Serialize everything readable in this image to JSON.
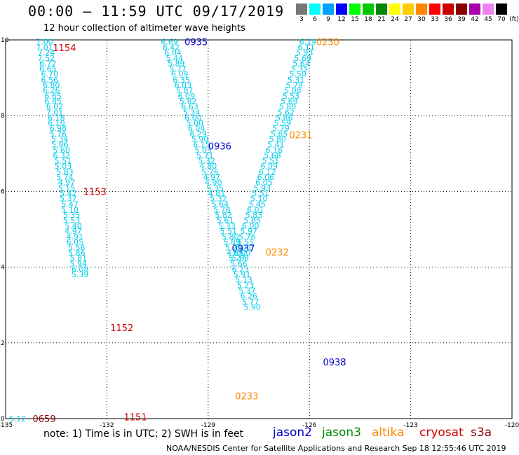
{
  "header": {
    "title": "00:00 – 11:59 UTC 09/17/2019",
    "subtitle": "12 hour collection of altimeter wave heights"
  },
  "color_scale": {
    "unit": "(ft)",
    "entries": [
      {
        "label": "3",
        "color": "#777777"
      },
      {
        "label": "6",
        "color": "#00ffff"
      },
      {
        "label": "9",
        "color": "#00a0ff"
      },
      {
        "label": "12",
        "color": "#0000ff"
      },
      {
        "label": "15",
        "color": "#00ff00"
      },
      {
        "label": "18",
        "color": "#00c800"
      },
      {
        "label": "21",
        "color": "#008800"
      },
      {
        "label": "24",
        "color": "#ffff00"
      },
      {
        "label": "27",
        "color": "#ffcc00"
      },
      {
        "label": "30",
        "color": "#ff8800"
      },
      {
        "label": "33",
        "color": "#ff0000"
      },
      {
        "label": "36",
        "color": "#cc0000"
      },
      {
        "label": "39",
        "color": "#880000"
      },
      {
        "label": "42",
        "color": "#aa00aa"
      },
      {
        "label": "45",
        "color": "#ee82ee"
      },
      {
        "label": "70",
        "color": "#000000"
      }
    ]
  },
  "footer": {
    "note": "note: 1) Time is in UTC; 2) SWH is in feet",
    "credit": "NOAA/NESDIS Center for Satellite Applications and Research   Sep 18 12:55:46 UTC 2019",
    "legend": [
      {
        "name": "jason2",
        "color": "#0000cc"
      },
      {
        "name": "jason3",
        "color": "#008800"
      },
      {
        "name": "altika",
        "color": "#ff8800"
      },
      {
        "name": "cryosat",
        "color": "#cc0000"
      },
      {
        "name": "s3a",
        "color": "#880000"
      }
    ]
  },
  "chart_data": {
    "type": "scatter",
    "title": "00:00 – 11:59 UTC 09/17/2019",
    "xlim": [
      -135,
      -120
    ],
    "ylim": [
      0,
      10
    ],
    "x_ticks": [
      "-135",
      "-132",
      "-129",
      "-126",
      "-123",
      "-120"
    ],
    "y_ticks": [
      "0",
      "2",
      "4",
      "6",
      "8",
      "10"
    ],
    "grid": true,
    "value_color": "#00ccee",
    "tracks": [
      {
        "satellite": "cryosat",
        "color": "#cc0000",
        "labels": [
          {
            "text": "1154",
            "lon": -133.6,
            "lat": 9.8
          },
          {
            "text": "1153",
            "lon": -132.7,
            "lat": 6.0
          },
          {
            "text": "1152",
            "lon": -131.9,
            "lat": 2.4
          },
          {
            "text": "1151",
            "lon": -131.5,
            "lat": 0.05
          }
        ],
        "points": [
          {
            "lon": -134.1,
            "lat": 9.95,
            "v": "7.00"
          },
          {
            "lon": -134.1,
            "lat": 9.81,
            "v": "7.01"
          },
          {
            "lon": -134.05,
            "lat": 9.67,
            "v": "7.24"
          },
          {
            "lon": -134.05,
            "lat": 9.52,
            "v": "7.52"
          },
          {
            "lon": -134.0,
            "lat": 9.38,
            "v": "6.72"
          },
          {
            "lon": -134.0,
            "lat": 9.24,
            "v": "6.65"
          },
          {
            "lon": -133.95,
            "lat": 9.1,
            "v": "6.70"
          },
          {
            "lon": -133.95,
            "lat": 8.95,
            "v": "6.56"
          },
          {
            "lon": -133.9,
            "lat": 8.81,
            "v": "6.80"
          },
          {
            "lon": -133.9,
            "lat": 8.67,
            "v": "6.26"
          },
          {
            "lon": -133.85,
            "lat": 8.52,
            "v": "6.65"
          },
          {
            "lon": -133.85,
            "lat": 8.38,
            "v": "6.85"
          },
          {
            "lon": -133.8,
            "lat": 8.24,
            "v": "6.02"
          },
          {
            "lon": -133.8,
            "lat": 8.09,
            "v": "7.01"
          },
          {
            "lon": -133.75,
            "lat": 7.95,
            "v": "6.18"
          },
          {
            "lon": -133.75,
            "lat": 7.81,
            "v": "6.10"
          },
          {
            "lon": -133.7,
            "lat": 7.67,
            "v": "6.98"
          },
          {
            "lon": -133.7,
            "lat": 7.52,
            "v": "5.76"
          },
          {
            "lon": -133.65,
            "lat": 7.38,
            "v": "5.34"
          },
          {
            "lon": -133.65,
            "lat": 7.24,
            "v": "5.96"
          },
          {
            "lon": -133.6,
            "lat": 7.09,
            "v": "5.60"
          },
          {
            "lon": -133.6,
            "lat": 6.95,
            "v": "6.32"
          },
          {
            "lon": -133.55,
            "lat": 6.81,
            "v": "5.51"
          },
          {
            "lon": -133.55,
            "lat": 6.67,
            "v": "5.03"
          },
          {
            "lon": -133.5,
            "lat": 6.52,
            "v": "5.83"
          },
          {
            "lon": -133.5,
            "lat": 6.38,
            "v": "5.74"
          },
          {
            "lon": -133.45,
            "lat": 6.24,
            "v": "4.97"
          },
          {
            "lon": -133.45,
            "lat": 6.09,
            "v": "5.15"
          },
          {
            "lon": -133.4,
            "lat": 5.95,
            "v": "5.42"
          },
          {
            "lon": -133.4,
            "lat": 5.81,
            "v": "5.37"
          },
          {
            "lon": -133.35,
            "lat": 5.67,
            "v": "5.47"
          },
          {
            "lon": -133.35,
            "lat": 5.52,
            "v": "5.10"
          },
          {
            "lon": -133.3,
            "lat": 5.38,
            "v": "5.35"
          },
          {
            "lon": -133.3,
            "lat": 5.24,
            "v": "5.53"
          },
          {
            "lon": -133.25,
            "lat": 5.09,
            "v": "5.40"
          },
          {
            "lon": -133.25,
            "lat": 4.95,
            "v": "4.97"
          },
          {
            "lon": -133.2,
            "lat": 4.81,
            "v": "4.91"
          },
          {
            "lon": -133.2,
            "lat": 4.67,
            "v": "6.05"
          },
          {
            "lon": -133.15,
            "lat": 4.52,
            "v": "5.56"
          },
          {
            "lon": -133.15,
            "lat": 4.38,
            "v": "5.86"
          },
          {
            "lon": -133.1,
            "lat": 4.24,
            "v": "5.81"
          },
          {
            "lon": -133.1,
            "lat": 4.09,
            "v": "5.94"
          },
          {
            "lon": -133.05,
            "lat": 3.95,
            "v": "6.08"
          },
          {
            "lon": -133.05,
            "lat": 3.81,
            "v": "5.39"
          }
        ]
      },
      {
        "satellite": "jason2",
        "color": "#0000cc",
        "labels": [
          {
            "text": "0935",
            "lon": -129.7,
            "lat": 9.95
          },
          {
            "text": "0936",
            "lon": -129.0,
            "lat": 7.2
          },
          {
            "text": "0937",
            "lon": -128.3,
            "lat": 4.5
          },
          {
            "text": "0938",
            "lon": -125.6,
            "lat": 1.5
          }
        ],
        "points": [
          {
            "lon": -130.4,
            "lat": 9.95,
            "v": "6.69"
          },
          {
            "lon": -130.35,
            "lat": 9.81,
            "v": "6.42"
          },
          {
            "lon": -130.3,
            "lat": 9.67,
            "v": "6.04"
          },
          {
            "lon": -130.25,
            "lat": 9.52,
            "v": "5.44"
          },
          {
            "lon": -130.2,
            "lat": 9.38,
            "v": "5.89"
          },
          {
            "lon": -130.15,
            "lat": 9.24,
            "v": "5.77"
          },
          {
            "lon": -130.1,
            "lat": 9.1,
            "v": "6.09"
          },
          {
            "lon": -130.05,
            "lat": 8.95,
            "v": "6.35"
          },
          {
            "lon": -130.0,
            "lat": 8.81,
            "v": "6.03"
          },
          {
            "lon": -129.95,
            "lat": 8.67,
            "v": "5.87"
          },
          {
            "lon": -129.9,
            "lat": 8.52,
            "v": "6.09"
          },
          {
            "lon": -129.85,
            "lat": 8.38,
            "v": "5.82"
          },
          {
            "lon": -129.8,
            "lat": 8.24,
            "v": "6.63"
          },
          {
            "lon": -129.75,
            "lat": 8.09,
            "v": "5.34"
          },
          {
            "lon": -129.7,
            "lat": 7.95,
            "v": "6.00"
          },
          {
            "lon": -129.65,
            "lat": 7.81,
            "v": "5.00"
          },
          {
            "lon": -129.6,
            "lat": 7.67,
            "v": "6.04"
          },
          {
            "lon": -129.55,
            "lat": 7.52,
            "v": "6.29"
          },
          {
            "lon": -129.5,
            "lat": 7.38,
            "v": "5.90"
          },
          {
            "lon": -129.45,
            "lat": 7.24,
            "v": "6.15"
          },
          {
            "lon": -129.4,
            "lat": 7.09,
            "v": "5.03"
          },
          {
            "lon": -129.35,
            "lat": 6.95,
            "v": "5.71"
          },
          {
            "lon": -129.3,
            "lat": 6.81,
            "v": "5.32"
          },
          {
            "lon": -129.25,
            "lat": 6.67,
            "v": "4.80"
          },
          {
            "lon": -129.2,
            "lat": 6.52,
            "v": "5.76"
          },
          {
            "lon": -129.15,
            "lat": 6.38,
            "v": "4.97"
          },
          {
            "lon": -129.1,
            "lat": 6.24,
            "v": "4.90"
          },
          {
            "lon": -129.05,
            "lat": 6.09,
            "v": "5.35"
          },
          {
            "lon": -129.0,
            "lat": 5.95,
            "v": "4.81"
          },
          {
            "lon": -128.95,
            "lat": 5.81,
            "v": "5.32"
          },
          {
            "lon": -128.9,
            "lat": 5.67,
            "v": "5.64"
          },
          {
            "lon": -128.85,
            "lat": 5.52,
            "v": "5.78"
          },
          {
            "lon": -128.8,
            "lat": 5.38,
            "v": "5.82"
          },
          {
            "lon": -128.75,
            "lat": 5.24,
            "v": "5.61"
          },
          {
            "lon": -128.7,
            "lat": 5.09,
            "v": "5.33"
          },
          {
            "lon": -128.65,
            "lat": 4.95,
            "v": "5.51"
          },
          {
            "lon": -128.6,
            "lat": 4.81,
            "v": "5.80"
          },
          {
            "lon": -128.55,
            "lat": 4.67,
            "v": "5.89"
          },
          {
            "lon": -128.5,
            "lat": 4.52,
            "v": "5.73"
          },
          {
            "lon": -128.45,
            "lat": 4.38,
            "v": "4.86"
          },
          {
            "lon": -128.4,
            "lat": 4.24,
            "v": "5.27"
          },
          {
            "lon": -128.35,
            "lat": 4.09,
            "v": "5.66"
          },
          {
            "lon": -128.3,
            "lat": 3.95,
            "v": "6.23"
          },
          {
            "lon": -128.25,
            "lat": 3.81,
            "v": "5.91"
          },
          {
            "lon": -128.2,
            "lat": 3.67,
            "v": "5.13"
          },
          {
            "lon": -128.15,
            "lat": 3.52,
            "v": "5.23"
          },
          {
            "lon": -128.1,
            "lat": 3.38,
            "v": "5.37"
          },
          {
            "lon": -128.05,
            "lat": 3.24,
            "v": "6.26"
          },
          {
            "lon": -128.0,
            "lat": 3.09,
            "v": "5.77"
          },
          {
            "lon": -127.95,
            "lat": 2.95,
            "v": "5.90"
          }
        ]
      },
      {
        "satellite": "altika",
        "color": "#ff8800",
        "labels": [
          {
            "text": "0230",
            "lon": -125.8,
            "lat": 9.95
          },
          {
            "text": "0231",
            "lon": -126.6,
            "lat": 7.5
          },
          {
            "text": "0232",
            "lon": -127.3,
            "lat": 4.4
          },
          {
            "text": "0233",
            "lon": -128.2,
            "lat": 0.6
          }
        ],
        "points": [
          {
            "lon": -126.3,
            "lat": 9.95,
            "v": "6.14"
          },
          {
            "lon": -126.35,
            "lat": 9.81,
            "v": "6.11"
          },
          {
            "lon": -126.4,
            "lat": 9.67,
            "v": "5.93"
          },
          {
            "lon": -126.45,
            "lat": 9.52,
            "v": "5.69"
          },
          {
            "lon": -126.5,
            "lat": 9.38,
            "v": "5.64"
          },
          {
            "lon": -126.55,
            "lat": 9.24,
            "v": "5.35"
          },
          {
            "lon": -126.6,
            "lat": 9.1,
            "v": "5.50"
          },
          {
            "lon": -126.65,
            "lat": 8.95,
            "v": "5.31"
          },
          {
            "lon": -126.7,
            "lat": 8.81,
            "v": "5.79"
          },
          {
            "lon": -126.75,
            "lat": 8.67,
            "v": "5.08"
          },
          {
            "lon": -126.8,
            "lat": 8.52,
            "v": "5.53"
          },
          {
            "lon": -126.85,
            "lat": 8.38,
            "v": "5.69"
          },
          {
            "lon": -126.9,
            "lat": 8.24,
            "v": "5.80"
          },
          {
            "lon": -126.95,
            "lat": 8.09,
            "v": "5.62"
          },
          {
            "lon": -127.0,
            "lat": 7.95,
            "v": "5.86"
          },
          {
            "lon": -127.05,
            "lat": 7.81,
            "v": "5.59"
          },
          {
            "lon": -127.1,
            "lat": 7.67,
            "v": "5.79"
          },
          {
            "lon": -127.15,
            "lat": 7.52,
            "v": "5.65"
          },
          {
            "lon": -127.2,
            "lat": 7.38,
            "v": "5.80"
          },
          {
            "lon": -127.25,
            "lat": 7.24,
            "v": "5.41"
          },
          {
            "lon": -127.3,
            "lat": 7.09,
            "v": "6.16"
          },
          {
            "lon": -127.35,
            "lat": 6.95,
            "v": "5.68"
          },
          {
            "lon": -127.4,
            "lat": 6.81,
            "v": "5.51"
          },
          {
            "lon": -127.45,
            "lat": 6.67,
            "v": "6.09"
          },
          {
            "lon": -127.5,
            "lat": 6.52,
            "v": "6.12"
          },
          {
            "lon": -127.55,
            "lat": 6.38,
            "v": "6.06"
          },
          {
            "lon": -127.6,
            "lat": 6.24,
            "v": "6.05"
          },
          {
            "lon": -127.65,
            "lat": 6.09,
            "v": "5.93"
          },
          {
            "lon": -127.7,
            "lat": 5.95,
            "v": "5.51"
          },
          {
            "lon": -127.75,
            "lat": 5.81,
            "v": "5.10"
          },
          {
            "lon": -127.8,
            "lat": 5.67,
            "v": "5.45"
          },
          {
            "lon": -127.85,
            "lat": 5.52,
            "v": "6.01"
          },
          {
            "lon": -127.9,
            "lat": 5.38,
            "v": "5.83"
          },
          {
            "lon": -127.95,
            "lat": 5.24,
            "v": "5.85"
          },
          {
            "lon": -128.0,
            "lat": 5.09,
            "v": "6.00"
          },
          {
            "lon": -128.05,
            "lat": 4.95,
            "v": "5.97"
          },
          {
            "lon": -128.1,
            "lat": 4.81,
            "v": "5.76"
          },
          {
            "lon": -128.15,
            "lat": 4.67,
            "v": "5.55"
          },
          {
            "lon": -128.2,
            "lat": 4.52,
            "v": "5.71"
          },
          {
            "lon": -128.25,
            "lat": 4.38,
            "v": "6.00"
          },
          {
            "lon": -128.3,
            "lat": 4.24,
            "v": "5.68"
          }
        ]
      },
      {
        "satellite": "s3a",
        "color": "#880000",
        "labels": [
          {
            "text": "0659",
            "lon": -134.2,
            "lat": 0.0
          }
        ],
        "points": [
          {
            "lon": -134.9,
            "lat": 0.0,
            "v": "5.12"
          }
        ]
      }
    ]
  }
}
